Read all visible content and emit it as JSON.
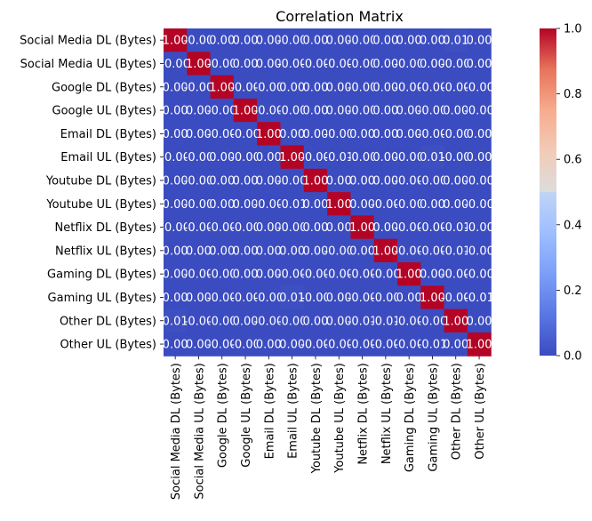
{
  "chart_data": {
    "type": "heatmap",
    "title": "Correlation Matrix",
    "labels": [
      "Social Media DL (Bytes)",
      "Social Media UL (Bytes)",
      "Google DL (Bytes)",
      "Google UL (Bytes)",
      "Email DL (Bytes)",
      "Email UL (Bytes)",
      "Youtube DL (Bytes)",
      "Youtube UL (Bytes)",
      "Netflix DL (Bytes)",
      "Netflix UL (Bytes)",
      "Gaming DL (Bytes)",
      "Gaming UL (Bytes)",
      "Other DL (Bytes)",
      "Other UL (Bytes)"
    ],
    "cell_labels": [
      [
        "1.00",
        "-0.00",
        "0.00",
        "0.00",
        "0.00",
        "-0.00",
        "0.00",
        "0.00",
        "-0.00",
        "0.00",
        "0.00",
        "0.00",
        "0.01",
        "0.00"
      ],
      [
        "-0.00",
        "1.00",
        "-0.00",
        "0.00",
        "0.00",
        "-0.00",
        "-0.00",
        "-0.00",
        "-0.00",
        "0.00",
        "-0.00",
        "0.00",
        "-0.00",
        "0.00"
      ],
      [
        "0.00",
        "-0.00",
        "1.00",
        "-0.00",
        "-0.00",
        "0.00",
        "0.00",
        "0.00",
        "-0.00",
        "0.00",
        "-0.00",
        "-0.00",
        "-0.00",
        "-0.00"
      ],
      [
        "0.00",
        "0.00",
        "-0.00",
        "1.00",
        "-0.00",
        "-0.00",
        "0.00",
        "0.00",
        "-0.00",
        "0.00",
        "0.00",
        "-0.00",
        "0.00",
        "-0.00"
      ],
      [
        "0.00",
        "0.00",
        "-0.00",
        "-0.00",
        "1.00",
        "0.00",
        "0.00",
        "-0.00",
        "0.00",
        "0.00",
        "0.00",
        "-0.00",
        "-0.00",
        "0.00"
      ],
      [
        "-0.00",
        "-0.00",
        "0.00",
        "-0.00",
        "0.00",
        "1.00",
        "-0.00",
        "-0.01",
        "-0.00",
        "0.00",
        "-0.00",
        "0.01",
        "-0.00",
        "0.00"
      ],
      [
        "0.00",
        "-0.00",
        "0.00",
        "0.00",
        "0.00",
        "-0.00",
        "1.00",
        "0.00",
        "0.00",
        "0.00",
        "-0.00",
        "-0.00",
        "0.00",
        "-0.00"
      ],
      [
        "0.00",
        "-0.00",
        "0.00",
        "0.00",
        "-0.00",
        "-0.01",
        "0.00",
        "1.00",
        "0.00",
        "-0.00",
        "-0.00",
        "0.00",
        "0.00",
        "-0.00"
      ],
      [
        "-0.00",
        "-0.00",
        "-0.00",
        "-0.00",
        "0.00",
        "-0.00",
        "0.00",
        "0.00",
        "1.00",
        "0.00",
        "-0.00",
        "-0.00",
        "-0.01",
        "-0.00"
      ],
      [
        "0.00",
        "0.00",
        "0.00",
        "0.00",
        "0.00",
        "0.00",
        "0.00",
        "-0.00",
        "0.00",
        "1.00",
        "-0.00",
        "-0.00",
        "-0.01",
        "-0.00"
      ],
      [
        "0.00",
        "-0.00",
        "-0.00",
        "0.00",
        "0.00",
        "-0.00",
        "-0.00",
        "-0.00",
        "-0.00",
        "-0.00",
        "1.00",
        "0.00",
        "-0.00",
        "-0.00"
      ],
      [
        "0.00",
        "0.00",
        "-0.00",
        "-0.00",
        "-0.00",
        "0.01",
        "-0.00",
        "0.00",
        "-0.00",
        "-0.00",
        "0.00",
        "1.00",
        "-0.00",
        "-0.01"
      ],
      [
        "0.01",
        "-0.00",
        "-0.00",
        "0.00",
        "-0.00",
        "-0.00",
        "0.00",
        "0.00",
        "-0.01",
        "-0.01",
        "-0.00",
        "-0.00",
        "1.00",
        "0.00"
      ],
      [
        "0.00",
        "0.00",
        "-0.00",
        "-0.00",
        "0.00",
        "0.00",
        "-0.00",
        "-0.00",
        "-0.00",
        "-0.00",
        "-0.00",
        "-0.01",
        "0.00",
        "1.00"
      ]
    ],
    "value_range": [
      0.0,
      1.0
    ],
    "colormap": "coolwarm",
    "colorbar_ticks": [
      "0.0",
      "0.2",
      "0.4",
      "0.6",
      "0.8",
      "1.0"
    ],
    "colors": {
      "low": "#3b4cc0",
      "mid": "#dddddd",
      "high": "#b40426",
      "text_on_low": "#ffffff"
    }
  }
}
